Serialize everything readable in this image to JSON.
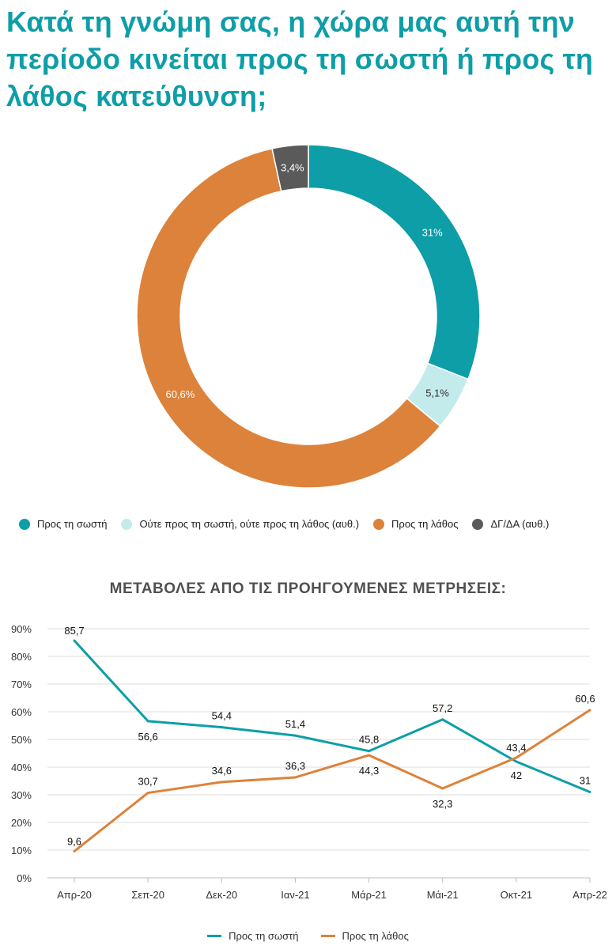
{
  "title": "Κατά τη γνώμη σας, η χώρα μας αυτή την περίοδο κινείται προς τη σωστή ή προς τη λάθος κατεύθυνση;",
  "chart_data": [
    {
      "type": "pie",
      "variant": "donut",
      "slices": [
        {
          "label": "Προς τη σωστή",
          "value": 31,
          "display": "31%",
          "color": "#0d9ea8"
        },
        {
          "label": "Ούτε προς τη σωστή, ούτε προς τη λάθος (αυθ.)",
          "value": 5.1,
          "display": "5,1%",
          "color": "#c3ebeb"
        },
        {
          "label": "Προς τη λάθος",
          "value": 60.6,
          "display": "60,6%",
          "color": "#dd823a"
        },
        {
          "label": "ΔΓ/ΔΑ (αυθ.)",
          "value": 3.4,
          "display": "3,4%",
          "color": "#5a5a5a"
        }
      ],
      "legend_position": "bottom"
    },
    {
      "type": "line",
      "title": "ΜΕΤΑΒΟΛΕΣ ΑΠΟ ΤΙΣ ΠΡΟΗΓΟΥΜΕΝΕΣ ΜΕΤΡΗΣΕΙΣ:",
      "categories": [
        "Απρ-20",
        "Σεπ-20",
        "Δεκ-20",
        "Ιαν-21",
        "Μάρ-21",
        "Μάι-21",
        "Οκτ-21",
        "Απρ-22"
      ],
      "series": [
        {
          "name": "Προς τη σωστή",
          "color": "#0d9ea8",
          "values": [
            85.7,
            56.6,
            54.4,
            51.4,
            45.8,
            57.2,
            42,
            31
          ],
          "labels": [
            "85,7",
            "56,6",
            "54,4",
            "51,4",
            "45,8",
            "57,2",
            "42",
            "31"
          ]
        },
        {
          "name": "Προς τη λάθος",
          "color": "#dd823a",
          "values": [
            9.6,
            30.7,
            34.6,
            36.3,
            44.3,
            32.3,
            43.4,
            60.6
          ],
          "labels": [
            "9,6",
            "30,7",
            "34,6",
            "36,3",
            "44,3",
            "32,3",
            "43,4",
            "60,6"
          ]
        }
      ],
      "ylim": [
        0,
        90
      ],
      "yticks": [
        "0%",
        "10%",
        "20%",
        "30%",
        "40%",
        "50%",
        "60%",
        "70%",
        "80%",
        "90%"
      ],
      "grid": true,
      "legend_position": "bottom"
    }
  ]
}
